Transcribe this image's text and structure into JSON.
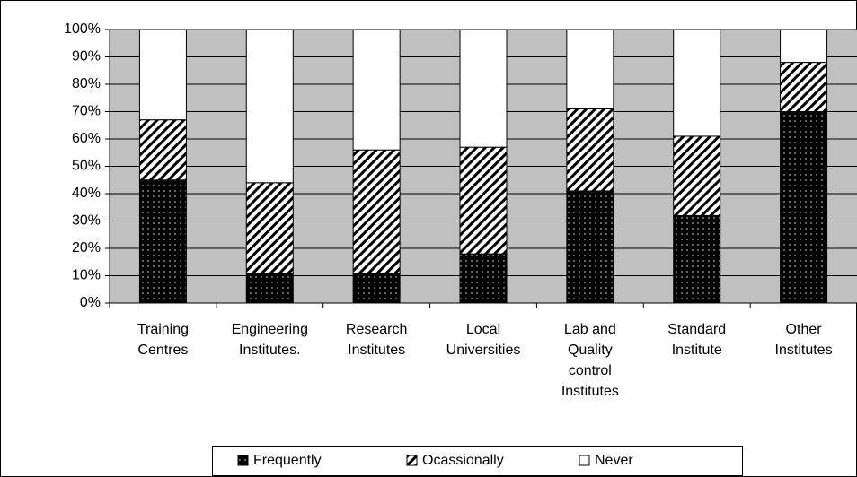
{
  "chart_data": {
    "type": "stacked_bar",
    "categories": [
      "Training Centres",
      "Engineering Institutes.",
      "Research Institutes",
      "Local Universities",
      "Lab and Quality control Institutes",
      "Standard Institute",
      "Other Institutes"
    ],
    "series": [
      {
        "name": "Frequently",
        "color": "#000000",
        "pattern": "dots",
        "values": [
          45,
          11,
          11,
          18,
          41,
          32,
          70
        ]
      },
      {
        "name": "Ocassionally",
        "color": "#000000",
        "pattern": "hatch",
        "values": [
          22,
          33,
          45,
          39,
          30,
          29,
          18
        ]
      },
      {
        "name": "Never",
        "color": "#ffffff",
        "pattern": "none",
        "values": [
          33,
          56,
          44,
          43,
          29,
          39,
          12
        ]
      }
    ],
    "ylim": [
      0,
      100
    ],
    "yticks": [
      {
        "value": 0,
        "label": "0%"
      },
      {
        "value": 10,
        "label": "10%"
      },
      {
        "value": 20,
        "label": "20%"
      },
      {
        "value": 30,
        "label": "30%"
      },
      {
        "value": 40,
        "label": "40%"
      },
      {
        "value": 50,
        "label": "50%"
      },
      {
        "value": 60,
        "label": "60%"
      },
      {
        "value": 70,
        "label": "70%"
      },
      {
        "value": 80,
        "label": "80%"
      },
      {
        "value": 90,
        "label": "90%"
      },
      {
        "value": 100,
        "label": "100%"
      }
    ],
    "grid": true,
    "legend": "bottom",
    "plot_background": "#c0c0c0"
  }
}
